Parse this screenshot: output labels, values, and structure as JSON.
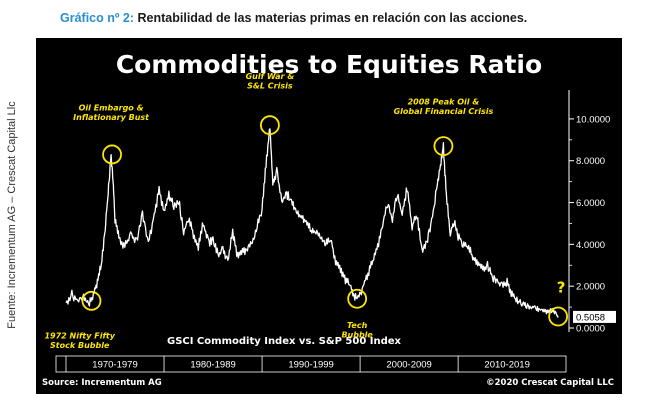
{
  "figure": {
    "number": "Gráfico nº 2:",
    "caption": "Rentabilidad de las materias primas en relación con las acciones.",
    "side_credit": "Fuente: Incrementum AG – Crescat Capital Llc"
  },
  "chart_data": {
    "type": "line",
    "title": "Commodities to Equities Ratio",
    "series_label": "GSCI Commodity Index vs. S&P 500 Index",
    "source": "Source: Incrementum AG",
    "copyright": "©2020 Crescat Capital LLC",
    "ylim": [
      0,
      11
    ],
    "xlim": [
      1970,
      2020.8
    ],
    "yticks": [
      {
        "value": 0,
        "label": "0.0000"
      },
      {
        "value": 2,
        "label": "2.0000"
      },
      {
        "value": 4,
        "label": "4.0000"
      },
      {
        "value": 6,
        "label": "6.0000"
      },
      {
        "value": 8,
        "label": "8.0000"
      },
      {
        "value": 10,
        "label": "10.0000"
      }
    ],
    "current_value": {
      "value": 0.5058,
      "label": "0.5058"
    },
    "decades": [
      {
        "label": "1970-1979",
        "start": 1970,
        "end": 1980
      },
      {
        "label": "1980-1989",
        "start": 1980,
        "end": 1990
      },
      {
        "label": "1990-1999",
        "start": 1990,
        "end": 2000
      },
      {
        "label": "2000-2009",
        "start": 2000,
        "end": 2010
      },
      {
        "label": "2010-2019",
        "start": 2010,
        "end": 2020
      }
    ],
    "annotations": [
      {
        "lines": [
          "1972 Nifty Fifty",
          "Stock Bubble"
        ],
        "x": 1972.6,
        "y": 1.3,
        "text_x": 1971.4,
        "text_y": -0.5
      },
      {
        "lines": [
          "Oil Embargo &",
          "Inflationary Bust"
        ],
        "x": 1974.7,
        "y": 8.3,
        "text_x": 1974.6,
        "text_y": 10.4
      },
      {
        "lines": [
          "Gulf War &",
          "S&L Crisis"
        ],
        "x": 1990.8,
        "y": 9.7,
        "text_x": 1990.8,
        "text_y": 11.9
      },
      {
        "lines": [
          "Tech",
          "Bubble"
        ],
        "x": 1999.7,
        "y": 1.4,
        "text_x": 1999.7,
        "text_y": 0.0
      },
      {
        "lines": [
          "2008 Peak Oil &",
          "Global Financial Crisis"
        ],
        "x": 2008.5,
        "y": 8.7,
        "text_x": 2008.5,
        "text_y": 10.7
      },
      {
        "lines": [
          "?"
        ],
        "x": 2020.2,
        "y": 0.55,
        "text_x": 2020.5,
        "text_y": 1.7
      }
    ],
    "x": [
      1970.0,
      1970.6,
      1971.2,
      1971.8,
      1972.3,
      1972.8,
      1973.2,
      1973.6,
      1974.0,
      1974.3,
      1974.6,
      1974.8,
      1975.0,
      1975.4,
      1976.0,
      1976.6,
      1977.2,
      1977.8,
      1978.4,
      1979.0,
      1979.5,
      1980.0,
      1980.5,
      1981.0,
      1981.5,
      1982.0,
      1982.5,
      1983.0,
      1983.5,
      1984.0,
      1984.5,
      1985.0,
      1985.5,
      1986.0,
      1986.5,
      1987.0,
      1987.5,
      1988.0,
      1988.5,
      1989.0,
      1989.5,
      1990.0,
      1990.4,
      1990.8,
      1991.1,
      1991.5,
      1992.0,
      1992.5,
      1993.0,
      1993.5,
      1994.0,
      1994.5,
      1995.0,
      1995.5,
      1996.0,
      1996.5,
      1997.0,
      1997.5,
      1998.0,
      1998.5,
      1999.0,
      1999.4,
      1999.8,
      2000.3,
      2000.8,
      2001.3,
      2001.8,
      2002.3,
      2002.8,
      2003.3,
      2003.8,
      2004.3,
      2004.8,
      2005.3,
      2005.8,
      2006.3,
      2006.8,
      2007.3,
      2007.8,
      2008.2,
      2008.5,
      2008.8,
      2009.2,
      2009.6,
      2010.0,
      2010.5,
      2011.0,
      2011.5,
      2012.0,
      2012.5,
      2013.0,
      2013.5,
      2014.0,
      2014.5,
      2015.0,
      2015.5,
      2016.0,
      2016.5,
      2017.0,
      2017.5,
      2018.0,
      2018.5,
      2019.0,
      2019.5,
      2020.0,
      2020.2
    ],
    "values": [
      1.2,
      1.6,
      1.3,
      1.5,
      1.1,
      1.6,
      2.2,
      3.0,
      4.8,
      6.5,
      8.3,
      7.0,
      5.2,
      4.3,
      3.9,
      4.5,
      4.1,
      5.5,
      4.0,
      5.4,
      6.6,
      5.5,
      6.4,
      5.8,
      6.1,
      4.6,
      5.2,
      4.5,
      3.9,
      5.0,
      4.1,
      4.2,
      3.5,
      3.8,
      3.2,
      4.6,
      3.4,
      3.6,
      3.8,
      4.1,
      4.9,
      5.7,
      7.8,
      9.7,
      6.9,
      7.5,
      6.0,
      6.4,
      6.1,
      5.5,
      5.3,
      5.1,
      4.7,
      4.6,
      4.4,
      4.0,
      4.3,
      3.2,
      2.8,
      2.3,
      2.0,
      1.5,
      1.4,
      2.0,
      2.6,
      3.2,
      3.9,
      5.0,
      5.9,
      5.2,
      6.4,
      5.5,
      6.7,
      4.9,
      5.4,
      3.7,
      4.1,
      5.1,
      6.6,
      7.8,
      8.7,
      6.3,
      4.6,
      5.1,
      4.4,
      4.0,
      3.9,
      3.4,
      3.1,
      2.8,
      3.0,
      2.4,
      2.2,
      2.0,
      2.2,
      1.6,
      1.3,
      1.2,
      1.1,
      1.0,
      0.95,
      0.9,
      0.8,
      0.85,
      0.65,
      0.5058
    ]
  }
}
